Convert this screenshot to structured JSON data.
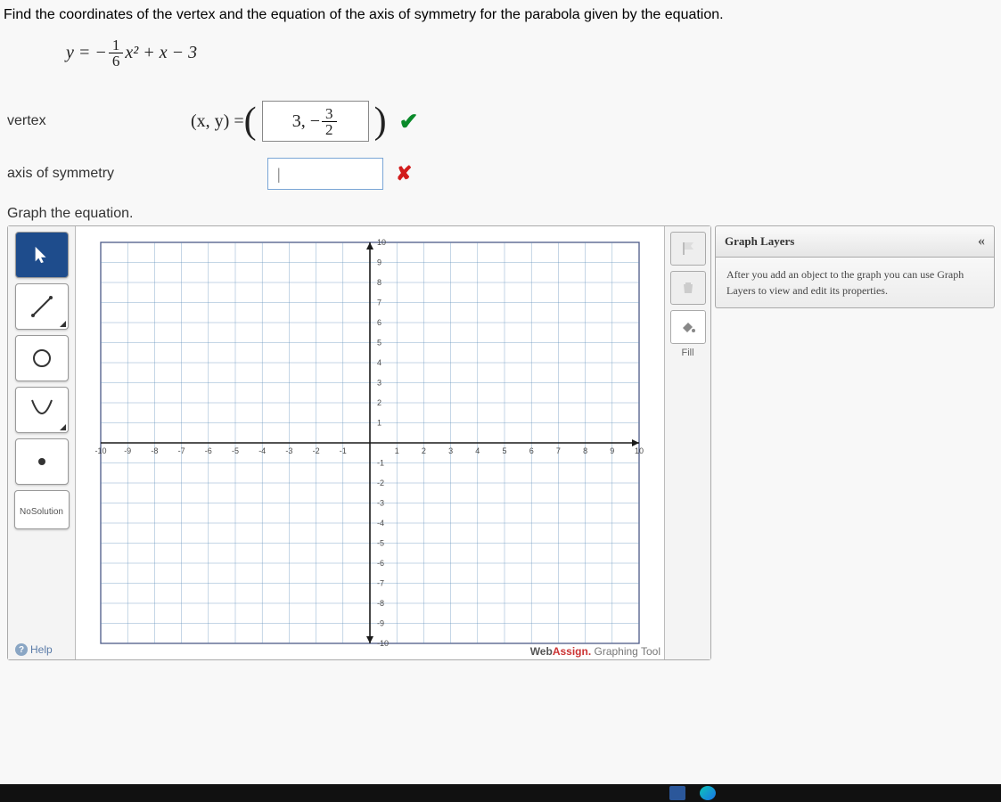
{
  "prompt": "Find the coordinates of the vertex and the equation of the axis of symmetry for the parabola given by the equation.",
  "equation": {
    "prefix": "y = −",
    "frac_num": "1",
    "frac_den": "6",
    "suffix": "x² + x − 3"
  },
  "vertex": {
    "label": "vertex",
    "lhs": "(x, y) = ",
    "answer_prefix": "3, −",
    "answer_frac_num": "3",
    "answer_frac_den": "2"
  },
  "axis": {
    "label": "axis of symmetry",
    "value": ""
  },
  "graph_section_label": "Graph the equation.",
  "tools": {
    "pointer": "pointer-tool",
    "line": "line-tool",
    "circle": "circle-tool",
    "parabola": "parabola-tool",
    "point": "point-tool",
    "nosolution_l1": "No",
    "nosolution_l2": "Solution",
    "help": "Help",
    "fill": "Fill"
  },
  "graph": {
    "xlim": [
      -10,
      10
    ],
    "ylim": [
      -10,
      10
    ],
    "tick_step": 1,
    "grid_color": "#5a8bb8",
    "axis_color": "#1a1a1a",
    "bg_color": "#ffffff",
    "label_color": "#4a4a4a",
    "label_fontsize": 9
  },
  "layers_panel": {
    "title": "Graph Layers",
    "body": "After you add an object to the graph you can use Graph Layers to view and edit its properties."
  },
  "branding": {
    "part1": "Web",
    "part2": "Assign.",
    "suffix": " Graphing Tool"
  },
  "colors": {
    "check": "#0a8a2a",
    "cross": "#d21c1c",
    "accent_blue": "#1e4c8c"
  }
}
